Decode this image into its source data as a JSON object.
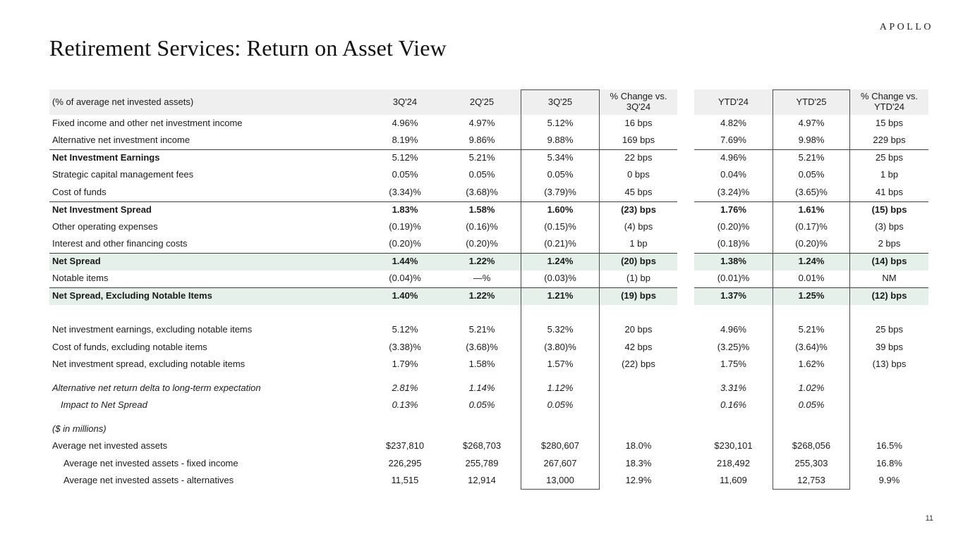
{
  "logo": "APOLLO",
  "page_title": "Retirement Services: Return on Asset View",
  "page_number": "11",
  "colors": {
    "header_gray": "#efefef",
    "highlight_green": "#e6f0ea",
    "rule_dark": "#3f3f3f",
    "column_box_border": "#4d4d4d"
  },
  "table": {
    "label_header": "(% of average net invested assets)",
    "columns": [
      "3Q'24",
      "2Q'25",
      "3Q'25",
      "% Change vs. 3Q'24",
      "YTD'24",
      "YTD'25",
      "% Change vs. YTD'24"
    ],
    "rows": [
      {
        "label": "Fixed income and other net investment income",
        "values": [
          "4.96%",
          "4.97%",
          "5.12%",
          "16 bps",
          "4.82%",
          "4.97%",
          "15 bps"
        ]
      },
      {
        "label": "Alternative net investment income",
        "values": [
          "8.19%",
          "9.86%",
          "9.88%",
          "169 bps",
          "7.69%",
          "9.98%",
          "229 bps"
        ]
      },
      {
        "label": "Net Investment Earnings",
        "bold_label": true,
        "line": true,
        "values": [
          "5.12%",
          "5.21%",
          "5.34%",
          "22 bps",
          "4.96%",
          "5.21%",
          "25 bps"
        ]
      },
      {
        "label": "Strategic capital management fees",
        "values": [
          "0.05%",
          "0.05%",
          "0.05%",
          "0 bps",
          "0.04%",
          "0.05%",
          "1 bp"
        ]
      },
      {
        "label": "Cost of funds",
        "values": [
          "(3.34)%",
          "(3.68)%",
          "(3.79)%",
          "45 bps",
          "(3.24)%",
          "(3.65)%",
          "41 bps"
        ]
      },
      {
        "label": "Net Investment Spread",
        "bold_label": true,
        "bold_values": true,
        "line": true,
        "values": [
          "1.83%",
          "1.58%",
          "1.60%",
          "(23) bps",
          "1.76%",
          "1.61%",
          "(15) bps"
        ]
      },
      {
        "label": "Other operating expenses",
        "values": [
          "(0.19)%",
          "(0.16)%",
          "(0.15)%",
          "(4) bps",
          "(0.20)%",
          "(0.17)%",
          "(3) bps"
        ]
      },
      {
        "label": "Interest and other financing costs",
        "values": [
          "(0.20)%",
          "(0.20)%",
          "(0.21)%",
          "1 bp",
          "(0.18)%",
          "(0.20)%",
          "2 bps"
        ]
      },
      {
        "label": "Net Spread",
        "bold_label": true,
        "bold_values": true,
        "green": true,
        "line": true,
        "values": [
          "1.44%",
          "1.22%",
          "1.24%",
          "(20) bps",
          "1.38%",
          "1.24%",
          "(14) bps"
        ]
      },
      {
        "label": "Notable items",
        "values": [
          "(0.04)%",
          "—%",
          "(0.03)%",
          "(1) bp",
          "(0.01)%",
          "0.01%",
          "NM"
        ]
      },
      {
        "label": "Net Spread, Excluding Notable Items",
        "bold_label": true,
        "bold_values": true,
        "green": true,
        "line": true,
        "values": [
          "1.40%",
          "1.22%",
          "1.21%",
          "(19) bps",
          "1.37%",
          "1.25%",
          "(12) bps"
        ]
      },
      {
        "spacer": 24
      },
      {
        "label": "Net investment earnings, excluding notable items",
        "values": [
          "5.12%",
          "5.21%",
          "5.32%",
          "20 bps",
          "4.96%",
          "5.21%",
          "25 bps"
        ]
      },
      {
        "label": "Cost of funds, excluding notable items",
        "values": [
          "(3.38)%",
          "(3.68)%",
          "(3.80)%",
          "42 bps",
          "(3.25)%",
          "(3.64)%",
          "39 bps"
        ]
      },
      {
        "label": "Net investment spread, excluding notable items",
        "values": [
          "1.79%",
          "1.58%",
          "1.57%",
          "(22) bps",
          "1.75%",
          "1.62%",
          "(13) bps"
        ]
      },
      {
        "spacer": 9
      },
      {
        "label": "Alternative net return delta to long-term expectation",
        "italic": true,
        "values": [
          "2.81%",
          "1.14%",
          "1.12%",
          "",
          "3.31%",
          "1.02%",
          ""
        ]
      },
      {
        "label": "Impact to Net Spread",
        "italic": true,
        "indent": 12,
        "values": [
          "0.13%",
          "0.05%",
          "0.05%",
          "",
          "0.16%",
          "0.05%",
          ""
        ]
      },
      {
        "spacer": 9
      },
      {
        "label": "($ in millions)",
        "italic": true,
        "values": [
          "",
          "",
          "",
          "",
          "",
          "",
          ""
        ]
      },
      {
        "label": "Average net invested assets",
        "values": [
          "$237,810",
          "$268,703",
          "$280,607",
          "18.0%",
          "$230,101",
          "$268,056",
          "16.5%"
        ]
      },
      {
        "label": "Average net invested assets - fixed income",
        "indent": 16,
        "values": [
          "226,295",
          "255,789",
          "267,607",
          "18.3%",
          "218,492",
          "255,303",
          "16.8%"
        ]
      },
      {
        "label": "Average net invested assets - alternatives",
        "indent": 16,
        "values": [
          "11,515",
          "12,914",
          "13,000",
          "12.9%",
          "11,609",
          "12,753",
          "9.9%"
        ]
      }
    ]
  }
}
